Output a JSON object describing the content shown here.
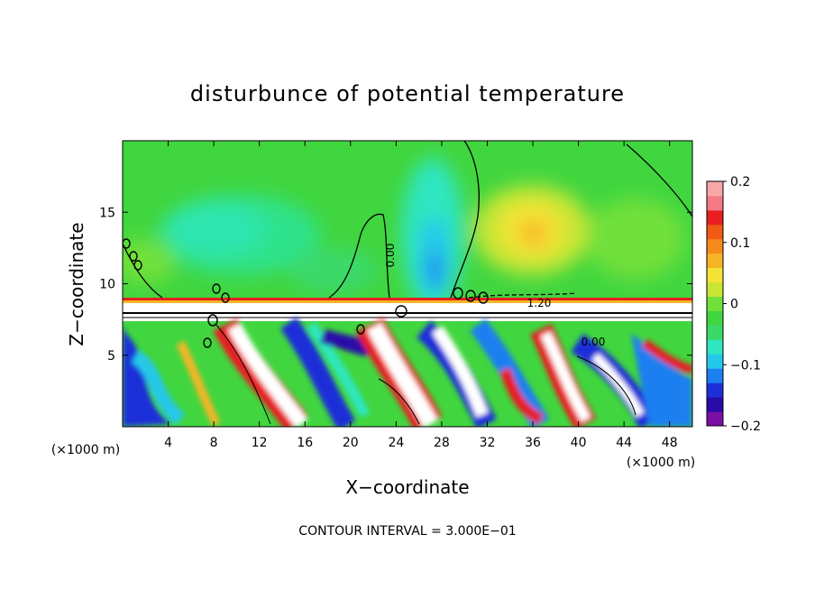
{
  "chart_data": {
    "type": "heatmap",
    "title": "disturbunce of potential temperature",
    "xlabel": "X−coordinate",
    "ylabel": "Z−coordinate",
    "x_unit_left": "(×1000 m)",
    "x_unit_right": "(×1000 m)",
    "xlim": [
      0,
      50
    ],
    "ylim": [
      0,
      20
    ],
    "x_ticks": [
      4,
      8,
      12,
      16,
      20,
      24,
      28,
      32,
      36,
      40,
      44,
      48
    ],
    "y_ticks": [
      5,
      10,
      15
    ],
    "colorbar": {
      "range": [
        -0.2,
        0.2
      ],
      "tick_labels": [
        "0.2",
        "0.1",
        "0",
        "−0.1",
        "−0.2"
      ],
      "tick_values": [
        0.2,
        0.1,
        0,
        -0.1,
        -0.2
      ],
      "colors": [
        "#7b0fa8",
        "#2a0aa8",
        "#1f2fd8",
        "#1e7ff0",
        "#25c8ea",
        "#2fe6c0",
        "#3ad96a",
        "#41d63f",
        "#71e03a",
        "#c8e634",
        "#f5e436",
        "#f6b526",
        "#f68a1a",
        "#f05a14",
        "#e81e20",
        "#f47a86",
        "#f7a7a7"
      ]
    },
    "contour_labels": [
      "0.00",
      "1.20",
      "0.00"
    ],
    "contour_interval_label": "CONTOUR INTERVAL = 3.000E−01",
    "grid": false
  }
}
